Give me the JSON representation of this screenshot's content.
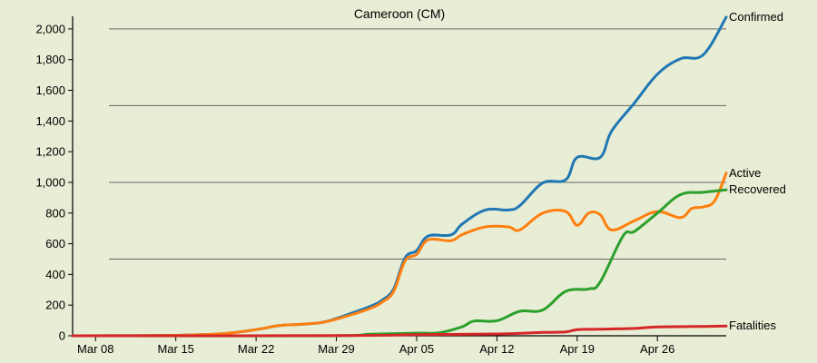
{
  "chart_data": {
    "type": "line",
    "title": "Cameroon (CM)",
    "xlabel": "",
    "ylabel": "",
    "x_ticks": [
      "Mar 08",
      "Mar 15",
      "Mar 22",
      "Mar 29",
      "Apr 05",
      "Apr 12",
      "Apr 19",
      "Apr 26"
    ],
    "y_ticks": [
      "0",
      "200",
      "400",
      "600",
      "800",
      "1,000",
      "1,200",
      "1,400",
      "1,600",
      "1,800",
      "2,000"
    ],
    "ylim": [
      0,
      2100
    ],
    "x_range": [
      "Mar 06",
      "May 02"
    ],
    "gridlines_y": [
      500,
      1000,
      1500,
      2000
    ],
    "background": "#e8edd5",
    "series": [
      {
        "name": "Confirmed",
        "color": "#1f77b4",
        "points": [
          [
            "Mar 06",
            0
          ],
          [
            "Mar 15",
            3
          ],
          [
            "Mar 19",
            13
          ],
          [
            "Mar 22",
            40
          ],
          [
            "Mar 24",
            66
          ],
          [
            "Mar 26",
            75
          ],
          [
            "Mar 28",
            91
          ],
          [
            "Mar 30",
            139
          ],
          [
            "Apr 01",
            193
          ],
          [
            "Apr 02",
            233
          ],
          [
            "Apr 03",
            306
          ],
          [
            "Apr 04",
            509
          ],
          [
            "Apr 05",
            555
          ],
          [
            "Apr 06",
            650
          ],
          [
            "Apr 08",
            658
          ],
          [
            "Apr 09",
            730
          ],
          [
            "Apr 11",
            820
          ],
          [
            "Apr 13",
            820
          ],
          [
            "Apr 14",
            848
          ],
          [
            "Apr 16",
            996
          ],
          [
            "Apr 18",
            1017
          ],
          [
            "Apr 19",
            1163
          ],
          [
            "Apr 21",
            1163
          ],
          [
            "Apr 22",
            1334
          ],
          [
            "Apr 24",
            1518
          ],
          [
            "Apr 26",
            1705
          ],
          [
            "Apr 28",
            1806
          ],
          [
            "Apr 30",
            1832
          ],
          [
            "May 02",
            2077
          ]
        ]
      },
      {
        "name": "Active",
        "color": "#ff7f0e",
        "points": [
          [
            "Mar 06",
            0
          ],
          [
            "Mar 15",
            3
          ],
          [
            "Mar 19",
            13
          ],
          [
            "Mar 22",
            40
          ],
          [
            "Mar 24",
            66
          ],
          [
            "Mar 26",
            75
          ],
          [
            "Mar 28",
            90
          ],
          [
            "Mar 30",
            130
          ],
          [
            "Apr 01",
            180
          ],
          [
            "Apr 02",
            220
          ],
          [
            "Apr 03",
            290
          ],
          [
            "Apr 04",
            490
          ],
          [
            "Apr 05",
            530
          ],
          [
            "Apr 06",
            625
          ],
          [
            "Apr 08",
            620
          ],
          [
            "Apr 09",
            660
          ],
          [
            "Apr 11",
            710
          ],
          [
            "Apr 13",
            710
          ],
          [
            "Apr 14",
            690
          ],
          [
            "Apr 16",
            800
          ],
          [
            "Apr 18",
            810
          ],
          [
            "Apr 19",
            720
          ],
          [
            "Apr 20",
            800
          ],
          [
            "Apr 21",
            790
          ],
          [
            "Apr 22",
            690
          ],
          [
            "Apr 24",
            750
          ],
          [
            "Apr 26",
            810
          ],
          [
            "Apr 28",
            770
          ],
          [
            "Apr 29",
            830
          ],
          [
            "Apr 30",
            840
          ],
          [
            "May 01",
            880
          ],
          [
            "May 02",
            1060
          ]
        ]
      },
      {
        "name": "Recovered",
        "color": "#2ca02c",
        "points": [
          [
            "Mar 06",
            0
          ],
          [
            "Mar 28",
            0
          ],
          [
            "Apr 01",
            10
          ],
          [
            "Apr 05",
            17
          ],
          [
            "Apr 07",
            20
          ],
          [
            "Apr 09",
            60
          ],
          [
            "Apr 10",
            96
          ],
          [
            "Apr 12",
            98
          ],
          [
            "Apr 14",
            160
          ],
          [
            "Apr 16",
            168
          ],
          [
            "Apr 18",
            290
          ],
          [
            "Apr 20",
            305
          ],
          [
            "Apr 21",
            350
          ],
          [
            "Apr 23",
            650
          ],
          [
            "Apr 24",
            680
          ],
          [
            "Apr 26",
            800
          ],
          [
            "Apr 28",
            920
          ],
          [
            "Apr 30",
            935
          ],
          [
            "May 02",
            952
          ]
        ]
      },
      {
        "name": "Fatalities",
        "color": "#d62728",
        "points": [
          [
            "Mar 06",
            0
          ],
          [
            "Mar 29",
            1
          ],
          [
            "Apr 05",
            7
          ],
          [
            "Apr 12",
            12
          ],
          [
            "Apr 16",
            22
          ],
          [
            "Apr 18",
            25
          ],
          [
            "Apr 19",
            40
          ],
          [
            "Apr 21",
            43
          ],
          [
            "Apr 24",
            48
          ],
          [
            "Apr 26",
            58
          ],
          [
            "Apr 30",
            61
          ],
          [
            "May 02",
            64
          ]
        ]
      }
    ]
  }
}
